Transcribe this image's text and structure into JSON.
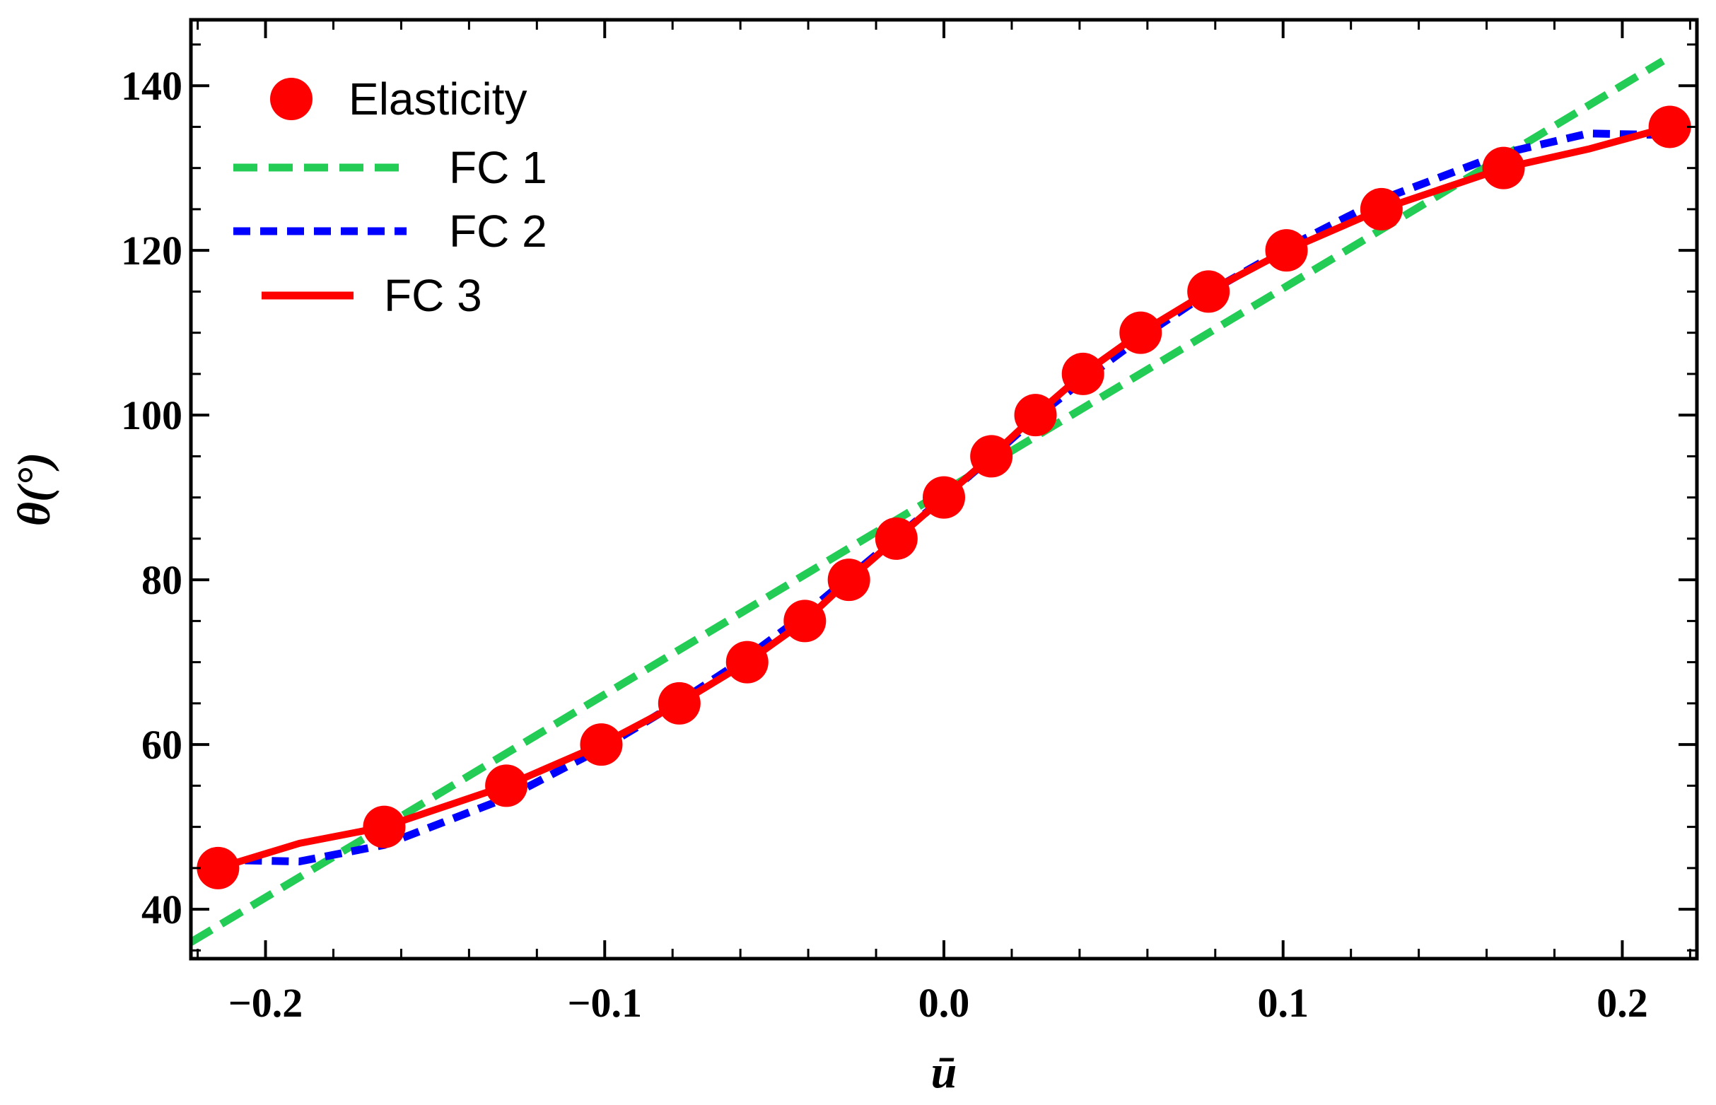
{
  "chart_data": {
    "type": "line",
    "title": "",
    "xlabel": "ū",
    "ylabel": "θ(°)",
    "xlim": [
      -0.222,
      0.222
    ],
    "ylim": [
      34,
      148
    ],
    "x_ticks": [
      -0.2,
      -0.1,
      0.0,
      0.1,
      0.2
    ],
    "x_tick_labels": [
      "−0.2",
      "−0.1",
      "0.0",
      "0.1",
      "0.2"
    ],
    "y_ticks": [
      40,
      60,
      80,
      100,
      120,
      140
    ],
    "y_tick_labels": [
      "40",
      "60",
      "80",
      "100",
      "120",
      "140"
    ],
    "grid": false,
    "legend_position": "top-left",
    "series": [
      {
        "name": "Elasticity",
        "style": "markers",
        "color": "#ff0000",
        "x": [
          -0.214,
          -0.165,
          -0.129,
          -0.101,
          -0.078,
          -0.058,
          -0.041,
          -0.028,
          -0.014,
          0.0,
          0.014,
          0.027,
          0.041,
          0.058,
          0.078,
          0.101,
          0.129,
          0.165,
          0.214
        ],
        "y": [
          45,
          50,
          55,
          60,
          65,
          70,
          75,
          80,
          85,
          90,
          95,
          100,
          105,
          110,
          115,
          120,
          125,
          130,
          135
        ]
      },
      {
        "name": "FC 1",
        "style": "dashed",
        "color": "#22cc55",
        "x": [
          -0.222,
          0.212
        ],
        "y": [
          36,
          143
        ]
      },
      {
        "name": "FC 2",
        "style": "dotted",
        "color": "#0000ff",
        "x": [
          -0.214,
          -0.19,
          -0.165,
          -0.129,
          -0.101,
          -0.078,
          -0.058,
          -0.041,
          -0.028,
          -0.014,
          0.0,
          0.014,
          0.027,
          0.041,
          0.058,
          0.078,
          0.101,
          0.129,
          0.165,
          0.19,
          0.214
        ],
        "y": [
          46,
          45.8,
          47.8,
          53.5,
          59.5,
          65.2,
          70.6,
          75.8,
          80.3,
          85.1,
          90,
          94.9,
          99.7,
          104.2,
          109.4,
          114.9,
          120.3,
          126.2,
          131.8,
          134.2,
          134
        ]
      },
      {
        "name": "FC 3",
        "style": "solid",
        "color": "#ff0000",
        "x": [
          -0.214,
          -0.19,
          -0.165,
          -0.129,
          -0.101,
          -0.078,
          -0.058,
          -0.041,
          -0.028,
          -0.014,
          0.0,
          0.014,
          0.027,
          0.041,
          0.058,
          0.078,
          0.101,
          0.129,
          0.165,
          0.19,
          0.214
        ],
        "y": [
          45,
          48,
          50,
          55,
          60,
          65,
          70,
          75,
          80,
          85,
          90,
          95,
          100,
          105,
          110,
          115,
          120,
          125,
          130,
          132.3,
          135
        ]
      }
    ]
  }
}
